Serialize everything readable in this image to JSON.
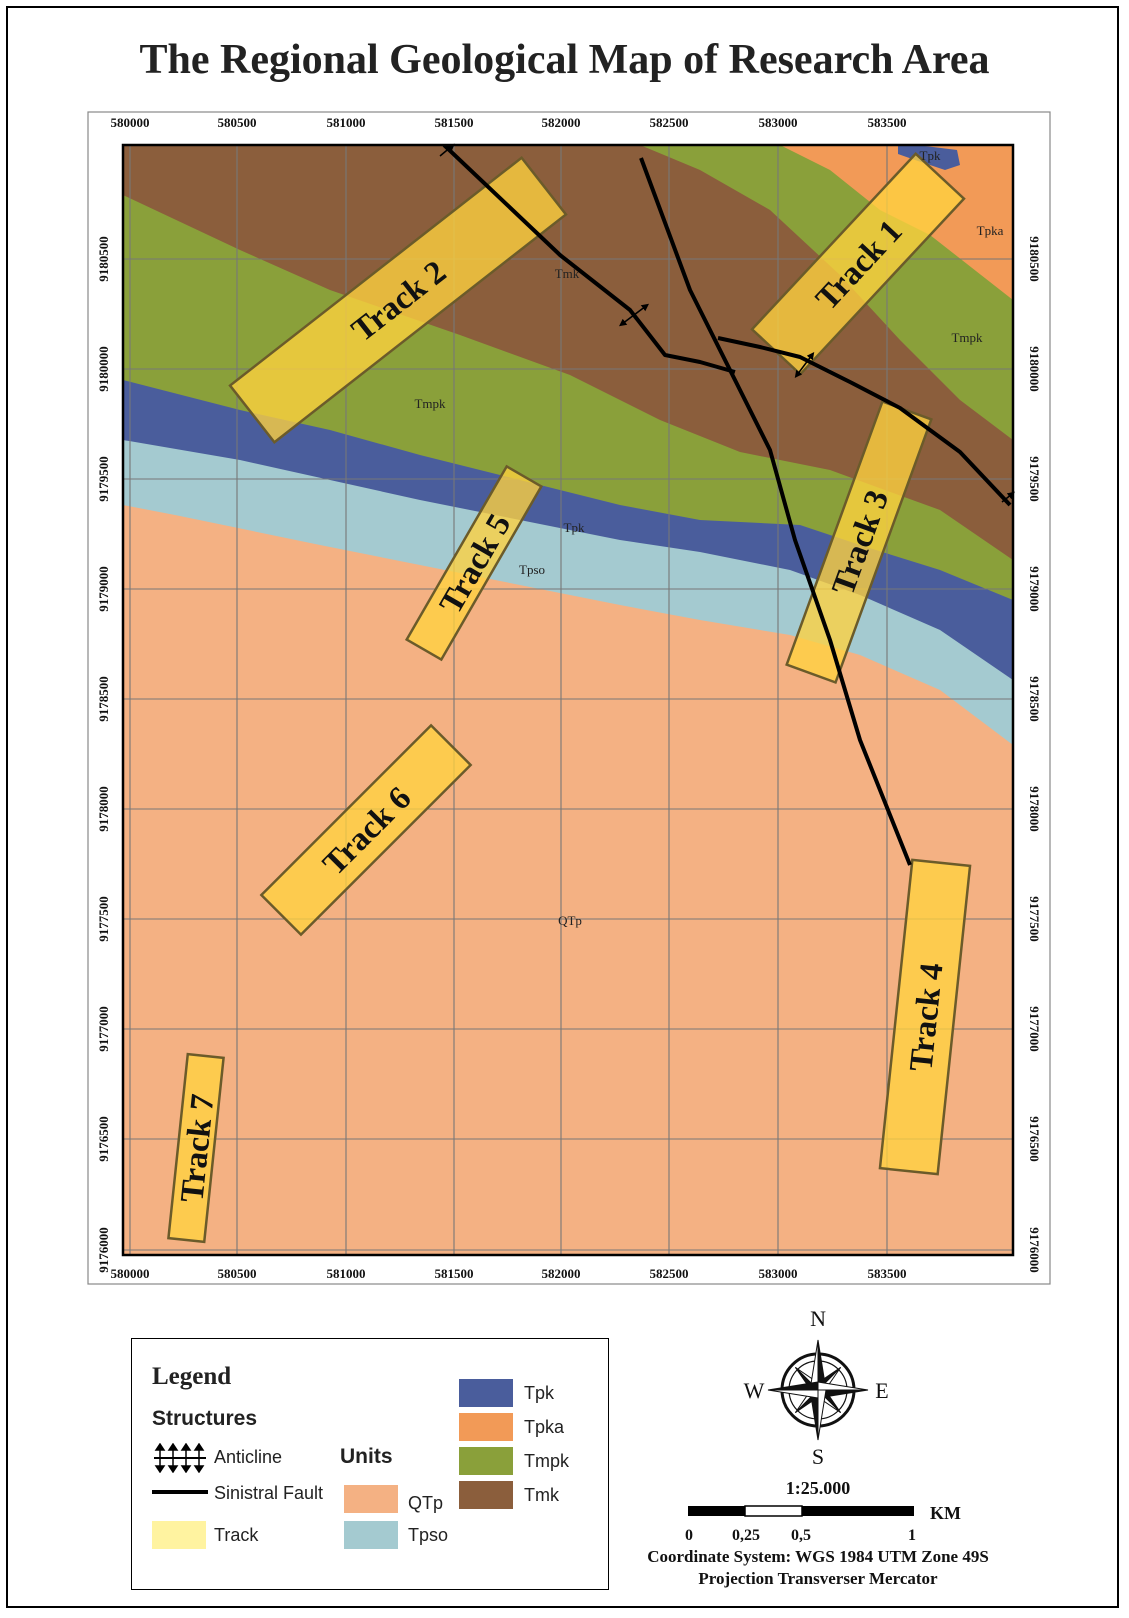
{
  "title": "The Regional Geological Map of Research Area",
  "map": {
    "x_ticks": [
      "580000",
      "580500",
      "581000",
      "581500",
      "582000",
      "582500",
      "583000",
      "583500"
    ],
    "y_ticks": [
      "9176000",
      "9176500",
      "9177000",
      "9177500",
      "9178000",
      "9178500",
      "9179000",
      "9179500",
      "9180000",
      "9180500"
    ],
    "unit_labels": [
      "Tpk",
      "Tpka",
      "Tmk",
      "Tmpk",
      "Tmpk",
      "Tpk",
      "Tpso",
      "QTp"
    ],
    "tracks": [
      "Track 1",
      "Track 2",
      "Track 3",
      "Track 4",
      "Track 5",
      "Track 6",
      "Track 7"
    ]
  },
  "legend": {
    "title": "Legend",
    "structures_heading": "Structures",
    "anticline": "Anticline",
    "fault": "Sinistral Fault",
    "track": "Track",
    "units_heading": "Units",
    "units": [
      {
        "name": "QTp",
        "color": "#f4b183"
      },
      {
        "name": "Tpso",
        "color": "#a4cad0"
      },
      {
        "name": "Tpk",
        "color": "#4a5d9c"
      },
      {
        "name": "Tpka",
        "color": "#f29a57"
      },
      {
        "name": "Tmpk",
        "color": "#8aa03a"
      },
      {
        "name": "Tmk",
        "color": "#8b5e3c"
      }
    ],
    "track_color": "#fff3a0"
  },
  "compass": {
    "n": "N",
    "s": "S",
    "e": "E",
    "w": "W"
  },
  "scale": {
    "ratio": "1:25.000",
    "labels": [
      "0",
      "0,25",
      "0,5",
      "1"
    ],
    "unit": "KM",
    "coordinate_system": "Coordinate System: WGS 1984 UTM Zone 49S",
    "projection": "Projection Transverser Mercator"
  }
}
